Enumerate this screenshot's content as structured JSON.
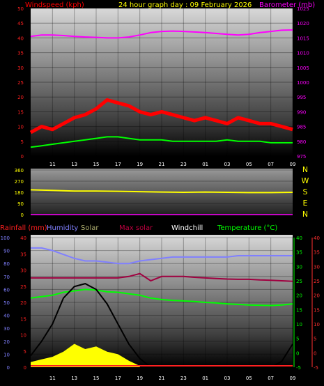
{
  "chart_data": [
    {
      "type": "line",
      "title": "24 hour graph day : 09 February 2026",
      "ylabel_left": "Windspeed (kph)",
      "ylabel_right": "Barometer (mb)",
      "x_ticks": [
        "11",
        "13",
        "15",
        "17",
        "19",
        "21",
        "23",
        "01",
        "03",
        "05",
        "07",
        "09"
      ],
      "y_left_ticks": [
        "0",
        "5",
        "10",
        "15",
        "20",
        "25",
        "30",
        "35",
        "40",
        "45",
        "50"
      ],
      "y_left_range": [
        0,
        50
      ],
      "y_right_ticks": [
        "975",
        "980",
        "985",
        "990",
        "995",
        "1000",
        "1005",
        "1010",
        "1015",
        "1020",
        "1025"
      ],
      "y_right_range": [
        975,
        1025
      ],
      "colors": {
        "wind": "#ff0000",
        "gust_avg": "#00ff00",
        "barometer": "#ff00ff"
      },
      "series": [
        {
          "key": "barometer",
          "x": [
            9,
            10,
            11,
            12,
            13,
            14,
            15,
            16,
            17,
            18,
            19,
            20,
            21,
            22,
            23,
            24,
            25,
            26,
            27,
            28,
            29,
            30,
            31,
            32,
            33
          ],
          "values": [
            1015.5,
            1016,
            1016,
            1015.8,
            1015.5,
            1015.3,
            1015.2,
            1015,
            1015,
            1015.3,
            1016,
            1016.8,
            1017.2,
            1017.3,
            1017.2,
            1017,
            1016.8,
            1016.5,
            1016.2,
            1016,
            1016.2,
            1016.8,
            1017.2,
            1017.6,
            1017.7
          ]
        },
        {
          "key": "wind",
          "x": [
            9,
            10,
            11,
            12,
            13,
            14,
            15,
            16,
            17,
            18,
            19,
            20,
            21,
            22,
            23,
            24,
            25,
            26,
            27,
            28,
            29,
            30,
            31,
            32,
            33
          ],
          "values": [
            8,
            10,
            9,
            11,
            13,
            14,
            16,
            19,
            18,
            17,
            15,
            14,
            15,
            14,
            13,
            12,
            13,
            12,
            11,
            13,
            12,
            11,
            11,
            10,
            9
          ]
        },
        {
          "key": "gust_avg",
          "x": [
            9,
            10,
            11,
            12,
            13,
            14,
            15,
            16,
            17,
            18,
            19,
            20,
            21,
            22,
            23,
            24,
            25,
            26,
            27,
            28,
            29,
            30,
            31,
            32,
            33
          ],
          "values": [
            3,
            3.5,
            4,
            4.5,
            5,
            5.5,
            6,
            6.5,
            6.5,
            6,
            5.5,
            5.5,
            5.5,
            5,
            5,
            5,
            5,
            5,
            5.5,
            5,
            5,
            5,
            4.5,
            4.5,
            4.5
          ]
        }
      ]
    },
    {
      "type": "line",
      "y_ticks": [
        "360",
        "270",
        "180",
        "90",
        "0"
      ],
      "y_range": [
        0,
        360
      ],
      "directions": [
        "N",
        "W",
        "S",
        "E",
        "N"
      ],
      "color": "#ffff00",
      "series": [
        {
          "key": "direction",
          "x": [
            9,
            11,
            13,
            15,
            17,
            19,
            21,
            23,
            25,
            27,
            29,
            31,
            33
          ],
          "values": [
            200,
            195,
            190,
            190,
            188,
            185,
            182,
            180,
            182,
            180,
            178,
            178,
            180
          ]
        }
      ]
    },
    {
      "type": "line",
      "legend": [
        "Rainfall (mm)",
        "Humidity",
        "Solar",
        "Max solar",
        "Windchill",
        "Temperature (°C)"
      ],
      "legend_colors": [
        "#ff2020",
        "#8080ff",
        "#b0b070",
        "#c00040",
        "#ffffff",
        "#00ff00"
      ],
      "x_ticks": [
        "11",
        "13",
        "15",
        "17",
        "19",
        "21",
        "23",
        "01",
        "03",
        "05",
        "07",
        "09"
      ],
      "y_left_ticks": [
        "0",
        "10",
        "20",
        "30",
        "40",
        "50",
        "60",
        "70",
        "80",
        "90",
        "100"
      ],
      "y_left_range": [
        0,
        100
      ],
      "y_mid_ticks": [
        "0",
        "5",
        "10",
        "15",
        "20",
        "25",
        "30",
        "35",
        "40"
      ],
      "y_right_ticks": [
        "-5",
        "0",
        "5",
        "10",
        "15",
        "20",
        "25",
        "30",
        "35",
        "40"
      ],
      "y_right_range": [
        -5,
        40
      ],
      "series": [
        {
          "key": "humidity",
          "x": [
            9,
            10,
            11,
            12,
            13,
            14,
            15,
            16,
            17,
            18,
            19,
            20,
            21,
            22,
            23,
            24,
            25,
            26,
            27,
            28,
            29,
            30,
            31,
            32,
            33
          ],
          "values": [
            92,
            92,
            90,
            87,
            84,
            82,
            82,
            81,
            80,
            80,
            82,
            83,
            84,
            85,
            85,
            85,
            85,
            85,
            85,
            86,
            86,
            86,
            86,
            86,
            86
          ]
        },
        {
          "key": "temperature",
          "x": [
            9,
            10,
            11,
            12,
            13,
            14,
            15,
            16,
            17,
            18,
            19,
            20,
            21,
            22,
            23,
            24,
            25,
            26,
            27,
            28,
            29,
            30,
            31,
            32,
            33
          ],
          "values": [
            19,
            19.5,
            20,
            21,
            21.5,
            22,
            21.8,
            21.2,
            21,
            20.5,
            20,
            19,
            18.5,
            18.2,
            18,
            17.8,
            17.5,
            17.3,
            17,
            16.8,
            16.6,
            16.5,
            16.4,
            16.6,
            17
          ]
        },
        {
          "key": "max_solar",
          "x": [
            9,
            10,
            11,
            12,
            13,
            14,
            15,
            16,
            17,
            18,
            19,
            20,
            21,
            22,
            23,
            24,
            25,
            26,
            27,
            28,
            29,
            30,
            31,
            32,
            33
          ],
          "values": [
            26,
            26,
            26,
            26,
            26,
            26,
            26,
            26,
            26,
            26.5,
            27.5,
            25,
            26.5,
            26.5,
            26.5,
            26.2,
            26,
            25.8,
            25.6,
            25.5,
            25.5,
            25.3,
            25.2,
            25,
            24.8
          ]
        },
        {
          "key": "solar_curve",
          "x": [
            9,
            10,
            11,
            12,
            13,
            14,
            15,
            16,
            17,
            18,
            19,
            20,
            21,
            22,
            23,
            24,
            25,
            26,
            27,
            28,
            29,
            30,
            31,
            32,
            33
          ],
          "values": [
            -1,
            4,
            10,
            19,
            23,
            24,
            22,
            17,
            10,
            3,
            -2,
            -5,
            -5,
            -5,
            -5,
            -5,
            -5,
            -5,
            -5,
            -5,
            -5,
            -5,
            -5,
            -3,
            3
          ]
        },
        {
          "key": "rain_fill",
          "x": [
            9,
            10,
            11,
            12,
            13,
            14,
            15,
            16,
            17,
            18,
            19
          ],
          "values": [
            4,
            6,
            8,
            12,
            18,
            14,
            16,
            12,
            10,
            5,
            1
          ]
        }
      ]
    }
  ]
}
